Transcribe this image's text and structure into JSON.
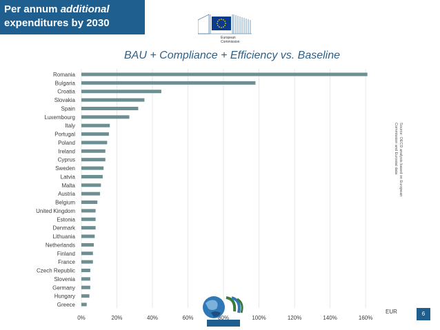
{
  "header": {
    "title_line1_prefix": "Per annum ",
    "title_line1_emph": "additional",
    "title_line2": "expenditures by 2030"
  },
  "logo": {
    "ec_text_line1": "European",
    "ec_text_line2": "Commission"
  },
  "chart_data": {
    "type": "bar",
    "orientation": "horizontal",
    "title": "BAU + Compliance + Efficiency vs. Baseline",
    "categories": [
      "Romania",
      "Bulgaria",
      "Croatia",
      "Slovakia",
      "Spain",
      "Luxembourg",
      "Italy",
      "Portugal",
      "Poland",
      "Ireland",
      "Cyprus",
      "Sweden",
      "Latvia",
      "Malta",
      "Austria",
      "Belgium",
      "United Kingdom",
      "Estonia",
      "Denmark",
      "Lithuania",
      "Netherlands",
      "Finland",
      "France",
      "Czech Republic",
      "Slovenia",
      "Germany",
      "Hungary",
      "Greece"
    ],
    "values": [
      161,
      98,
      45,
      35.5,
      32,
      27,
      16,
      15.5,
      14.5,
      13.5,
      13.5,
      12.5,
      12,
      11,
      10.5,
      9,
      8,
      8,
      8,
      7.5,
      7,
      6.5,
      6.5,
      5,
      5,
      5,
      4.5,
      3
    ],
    "x_ticks": [
      "0%",
      "20%",
      "40%",
      "60%",
      "80%",
      "100%",
      "120%",
      "140%",
      "160%"
    ],
    "xlim": [
      0,
      165
    ],
    "xunit": "%",
    "grid": true,
    "bar_color": "#6e8f91",
    "source_line1": "Source: OECD analysis based on European",
    "source_line2": "Commission and Eurostat data",
    "unit_label": "EUR"
  },
  "footer": {
    "page_number": "6"
  },
  "colors": {
    "header_band": "#1f5f8f",
    "title_text": "#2d5f86",
    "eu_blue": "#0a3a8c",
    "eu_gold": "#ffcc00"
  }
}
